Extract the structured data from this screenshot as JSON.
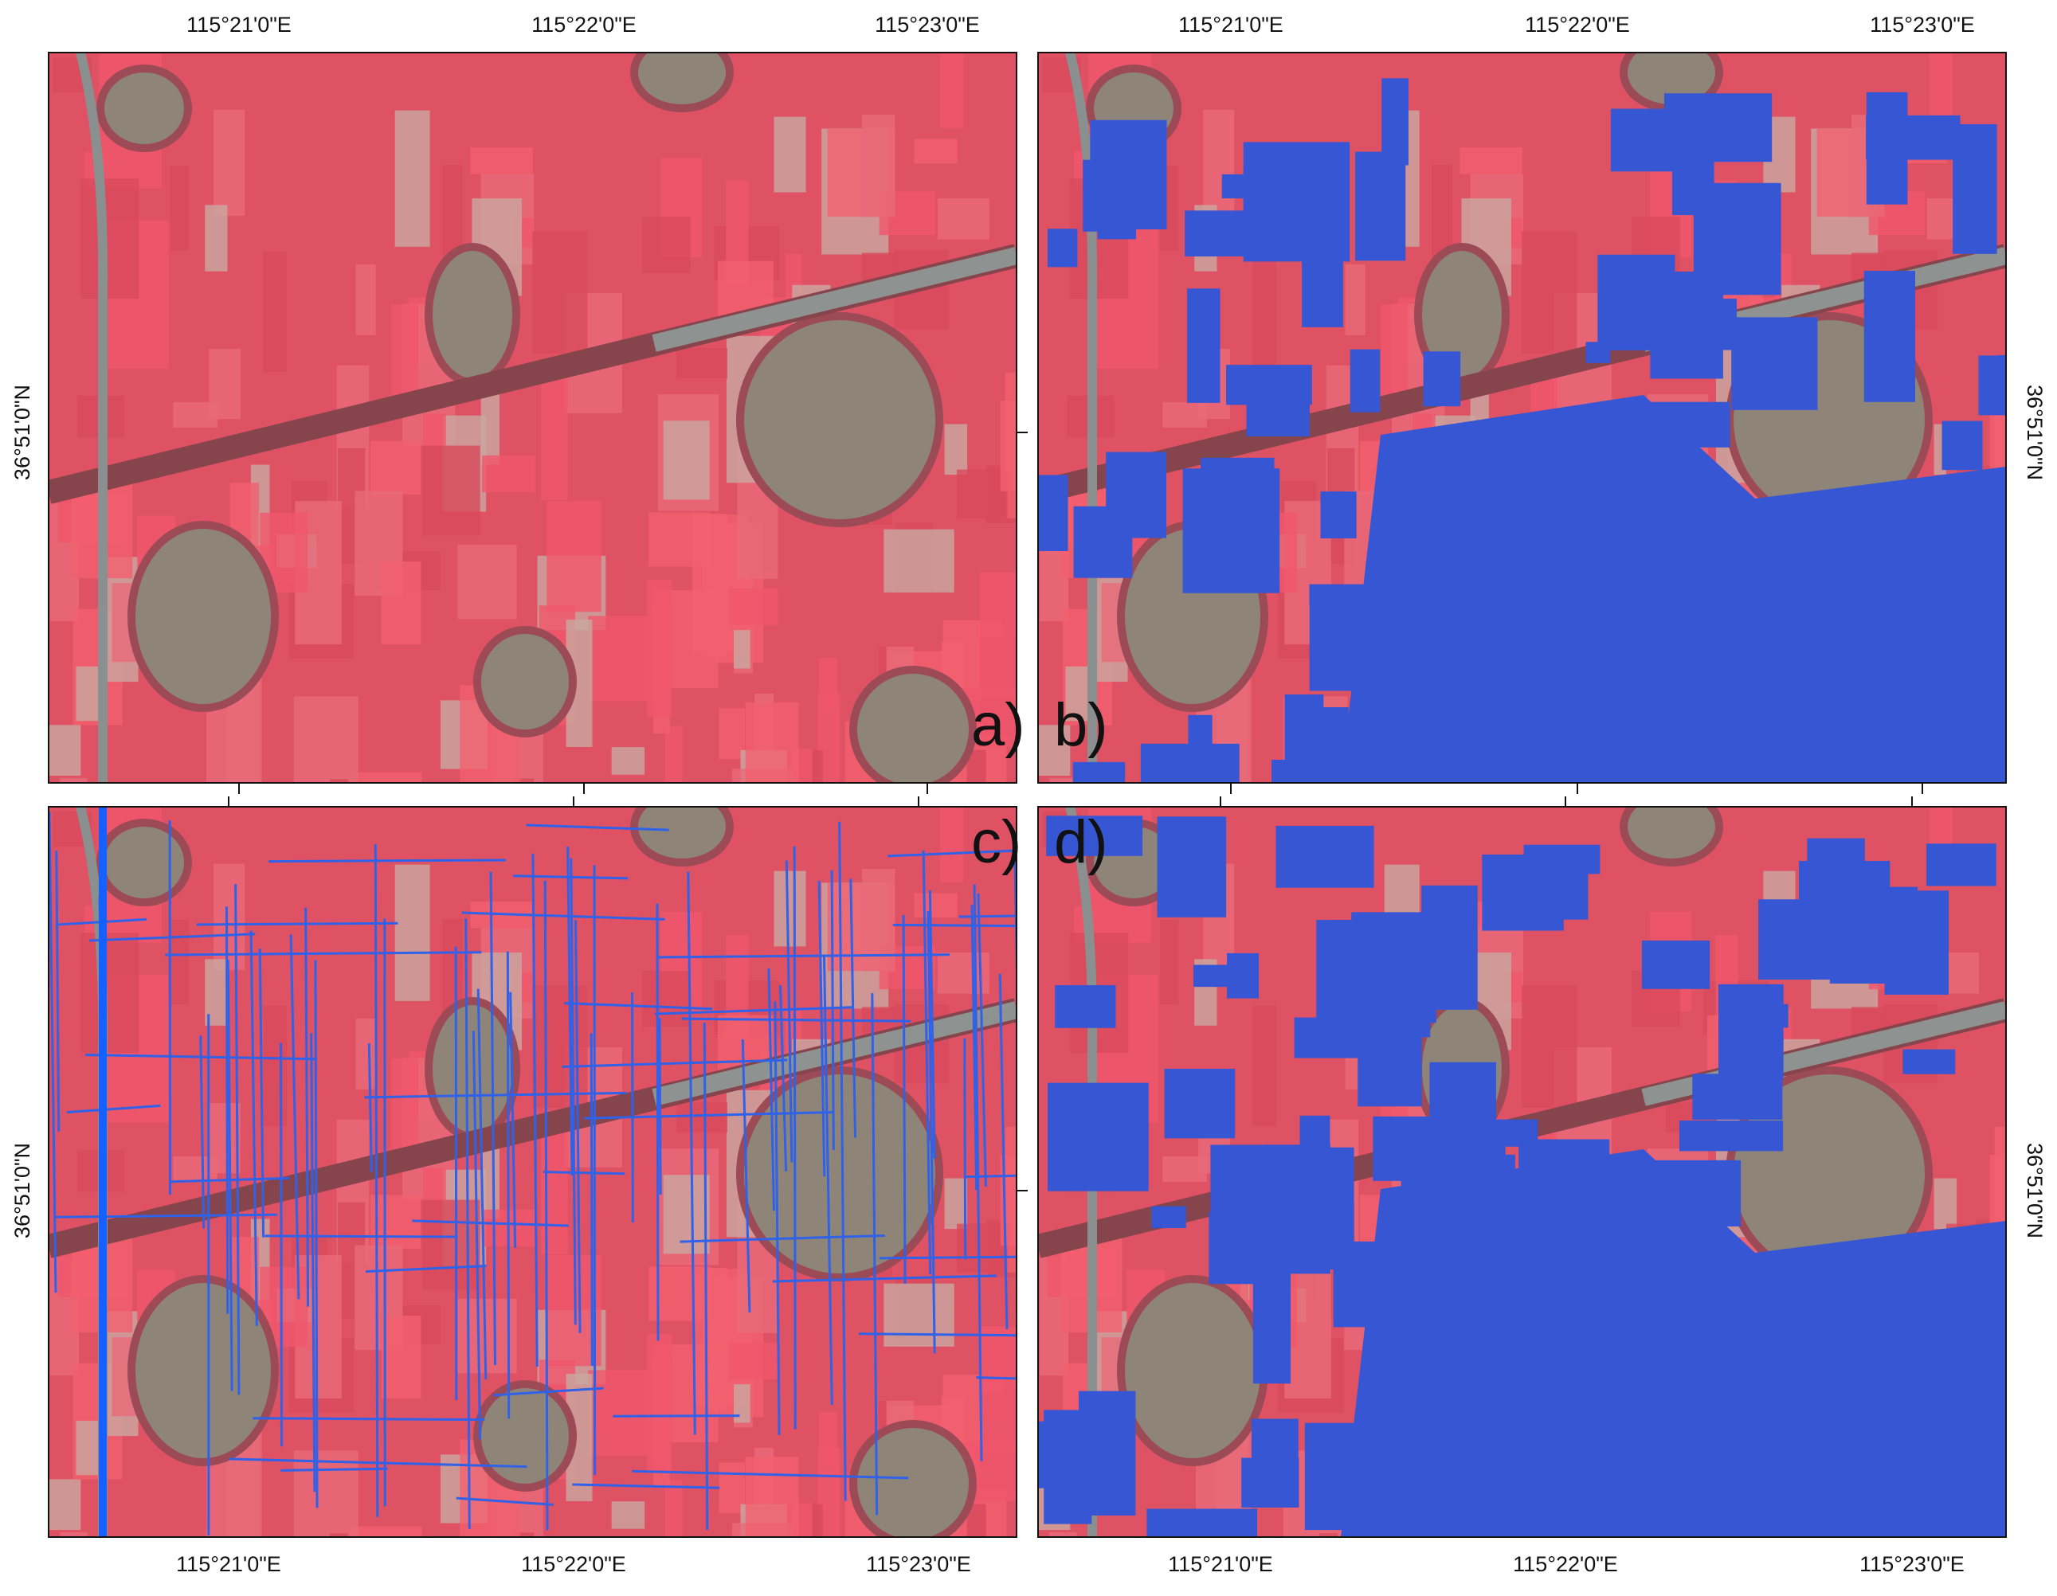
{
  "figure": {
    "panels": [
      {
        "label": "a)"
      },
      {
        "label": "b)"
      },
      {
        "label": "c)"
      },
      {
        "label": "d)"
      }
    ],
    "longitude_labels": [
      "115°21'0\"E",
      "115°22'0\"E",
      "115°23'0\"E"
    ],
    "latitude_label": "36°51'0\"N"
  }
}
